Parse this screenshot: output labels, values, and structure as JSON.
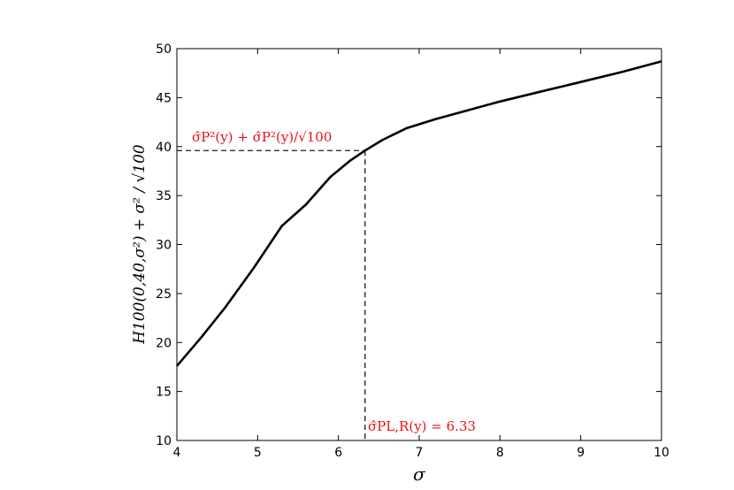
{
  "chart_data": {
    "type": "line",
    "title": "",
    "xlabel": "σ",
    "ylabel": "H100(0,40,σ²) + σ² / √100",
    "xlim": [
      4,
      10
    ],
    "ylim": [
      10,
      50
    ],
    "x_ticks": [
      4,
      5,
      6,
      7,
      8,
      9,
      10
    ],
    "y_ticks": [
      10,
      15,
      20,
      25,
      30,
      35,
      40,
      45,
      50
    ],
    "grid": false,
    "series": [
      {
        "x": [
          4.0,
          4.3,
          4.6,
          4.95,
          5.3,
          5.6,
          5.9,
          6.15,
          6.33,
          6.55,
          6.85,
          7.2,
          7.6,
          8.0,
          8.5,
          9.0,
          9.5,
          10.0
        ],
        "y": [
          17.6,
          20.5,
          23.6,
          27.6,
          31.9,
          34.1,
          36.9,
          38.6,
          39.6,
          40.7,
          41.9,
          42.8,
          43.7,
          44.6,
          45.6,
          46.6,
          47.6,
          48.7
        ],
        "color": "#000000"
      }
    ],
    "reference": {
      "x": 6.33,
      "y": 39.6
    },
    "annotations": {
      "horizontal": "σ̂P²(y) + σ̂P²(y)/√100",
      "vertical": "σ̂PL,R(y) = 6.33"
    },
    "annotation_color": "#e8101a"
  }
}
